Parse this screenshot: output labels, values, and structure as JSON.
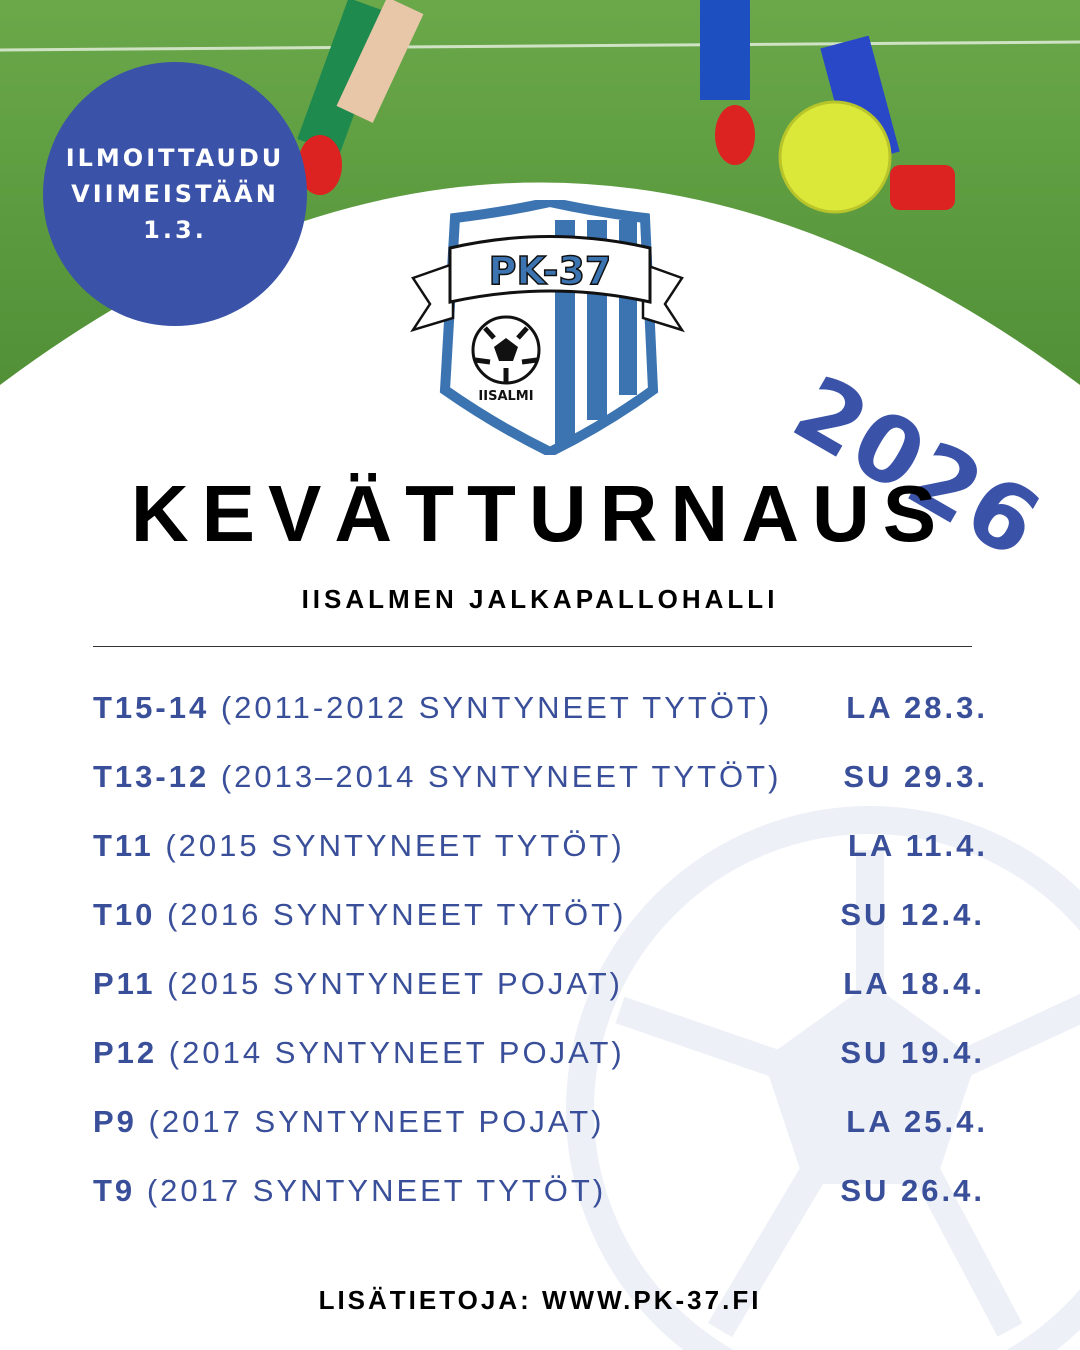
{
  "badge": {
    "lines": [
      "ILMOITTAUDU",
      "VIIMEISTÄÄN",
      "1.3."
    ]
  },
  "logo": {
    "name": "PK-37",
    "town": "IISALMI"
  },
  "year": "2026",
  "title": "KEVÄTTURNAUS",
  "venue": "IISALMEN JALKAPALLOHALLI",
  "schedule": [
    {
      "code": "T15-14",
      "desc": "(2011-2012 SYNTYNEET TYTÖT)",
      "date": "LA 28.3."
    },
    {
      "code": "T13-12",
      "desc": "(2013–2014 SYNTYNEET TYTÖT)",
      "date": "SU 29.3."
    },
    {
      "code": "T11",
      "desc": "(2015 SYNTYNEET TYTÖT)",
      "date": "LA 11.4."
    },
    {
      "code": "T10",
      "desc": "(2016 SYNTYNEET TYTÖT)",
      "date": "SU 12.4."
    },
    {
      "code": "P11",
      "desc": "(2015 SYNTYNEET POJAT)",
      "date": "LA 18.4."
    },
    {
      "code": "P12",
      "desc": "(2014 SYNTYNEET POJAT)",
      "date": "SU 19.4."
    },
    {
      "code": "P9",
      "desc": "(2017 SYNTYNEET POJAT)",
      "date": "LA 25.4."
    },
    {
      "code": "T9",
      "desc": "(2017 SYNTYNEET TYTÖT)",
      "date": "SU 26.4."
    }
  ],
  "footer": "LISÄTIETOJA: WWW.PK-37.FI",
  "colors": {
    "accent": "#3a52a8",
    "text_blue": "#3a4f9a",
    "grass": "#5a9a3a"
  }
}
